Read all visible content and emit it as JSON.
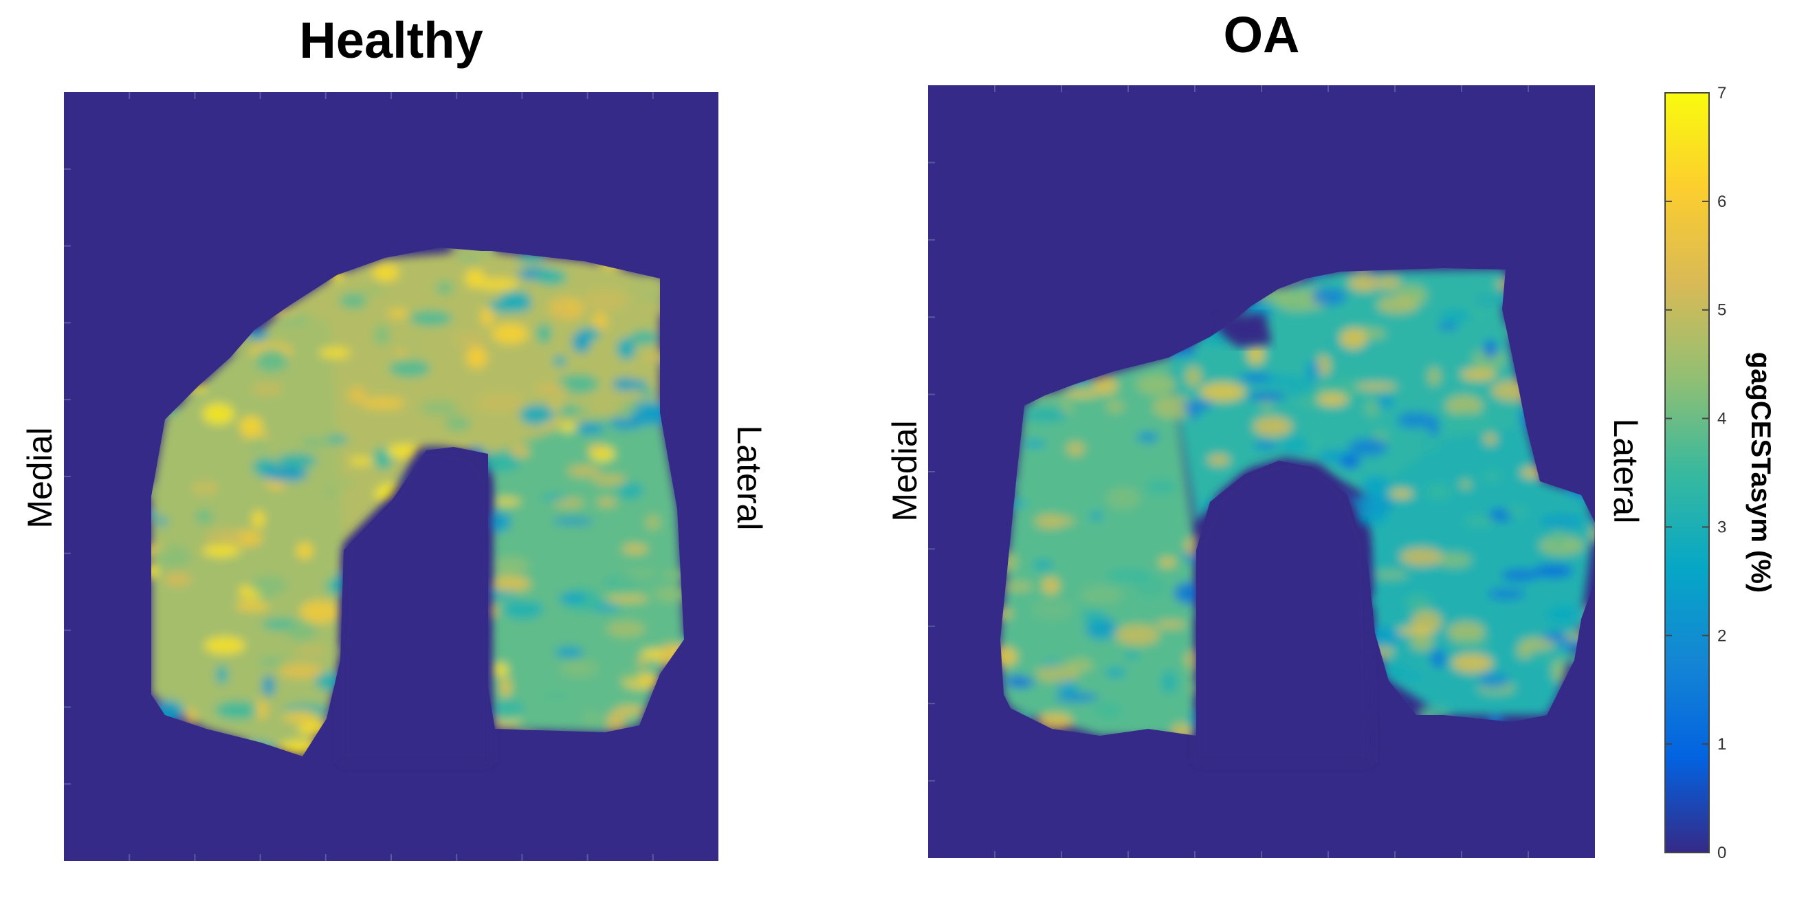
{
  "chart_data": [
    {
      "type": "heatmap",
      "title": "Healthy",
      "left_label": "Medial",
      "right_label": "Lateral",
      "colormap": "parula",
      "background_value": 0,
      "regions": [
        {
          "part": "medial-condyle",
          "mean_value": 4.6
        },
        {
          "part": "roof",
          "mean_value": 4.8
        },
        {
          "part": "lateral-condyle",
          "mean_value": 3.9
        }
      ]
    },
    {
      "type": "heatmap",
      "title": "OA",
      "left_label": "Medial",
      "right_label": "Lateral",
      "colormap": "parula",
      "background_value": 0,
      "regions": [
        {
          "part": "medial-condyle",
          "mean_value": 3.8
        },
        {
          "part": "roof",
          "mean_value": 3.3
        },
        {
          "part": "lateral-condyle",
          "mean_value": 3.1
        }
      ]
    }
  ],
  "colorbar": {
    "label": "gagCESTasym (%)",
    "min": 0,
    "max": 7,
    "ticks": [
      "0",
      "1",
      "2",
      "3",
      "4",
      "5",
      "6",
      "7"
    ],
    "colors": [
      "#352a87",
      "#0363e1",
      "#1485d4",
      "#06a7c6",
      "#38b99e",
      "#92bf73",
      "#d9ba56",
      "#fcce2e",
      "#f9fb0e"
    ]
  }
}
